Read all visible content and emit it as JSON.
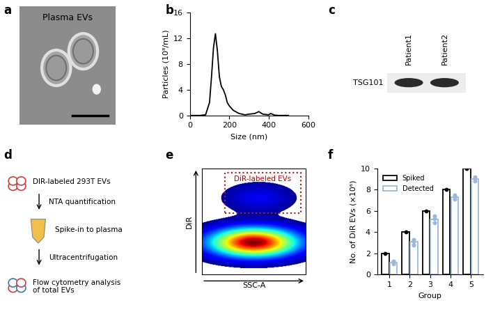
{
  "panel_labels": [
    "a",
    "b",
    "c",
    "d",
    "e",
    "f"
  ],
  "image": {
    "title": "Plasma EVs"
  },
  "blot": {
    "lanes": [
      "Patient1",
      "Patient2"
    ],
    "protein": "TSG101"
  },
  "workflow": {
    "steps": [
      "DIR-labeled 293T EVs",
      "NTA quantification",
      "Spike-in to plasma",
      "Ultracentrifugation",
      "Flow cytometry analysis\nof total EVs"
    ]
  },
  "chart_data": [
    {
      "type": "line",
      "x_label": "Size (nm)",
      "y_label": "Particles (10⁸/mL)",
      "x": [
        0,
        50,
        80,
        100,
        110,
        120,
        130,
        140,
        150,
        160,
        170,
        180,
        190,
        200,
        220,
        250,
        280,
        300,
        330,
        350,
        370,
        400,
        410,
        430,
        450,
        500
      ],
      "values": [
        0,
        0,
        0.1,
        2,
        6,
        10.5,
        12.7,
        10,
        6,
        4.5,
        4.0,
        3.2,
        2.0,
        1.5,
        0.8,
        0.3,
        0.1,
        0.2,
        0.3,
        0.6,
        0.2,
        0.1,
        0.3,
        0.05,
        0,
        0
      ],
      "color": "#000000",
      "xlim": [
        0,
        600
      ],
      "xticks": [
        0,
        200,
        400,
        600
      ],
      "ylim": [
        0,
        16
      ],
      "yticks": [
        0,
        4,
        8,
        12,
        16
      ]
    },
    {
      "type": "density",
      "x_label": "SSC-A",
      "y_label": "DiR",
      "gate_label": "DiR-labeled EVs",
      "tick_labels": false
    },
    {
      "type": "bar",
      "x_label": "Group",
      "y_label": "No. of DiR EVs (×10⁶)",
      "categories": [
        "1",
        "2",
        "3",
        "4",
        "5"
      ],
      "series": [
        {
          "name": "Spiked",
          "color": "#000000",
          "values": [
            2,
            4,
            6,
            8,
            10
          ],
          "points": [
            [
              2
            ],
            [
              4
            ],
            [
              6
            ],
            [
              8
            ],
            [
              10
            ]
          ]
        },
        {
          "name": "Detected",
          "color": "#9DB8DC",
          "values": [
            1.15,
            3.07,
            5.23,
            7.3,
            9.0
          ],
          "errors": [
            0.15,
            0.25,
            0.3,
            0.2,
            0.2
          ],
          "points": [
            [
              1.0,
              1.2,
              1.25
            ],
            [
              2.8,
              3.1,
              3.3
            ],
            [
              4.9,
              5.3,
              5.5
            ],
            [
              7.1,
              7.3,
              7.5
            ],
            [
              8.8,
              9.0,
              9.2
            ]
          ]
        }
      ],
      "ylim": [
        0,
        10
      ],
      "yticks": [
        0,
        2,
        4,
        6,
        8,
        10
      ],
      "legend": "upper left"
    }
  ]
}
